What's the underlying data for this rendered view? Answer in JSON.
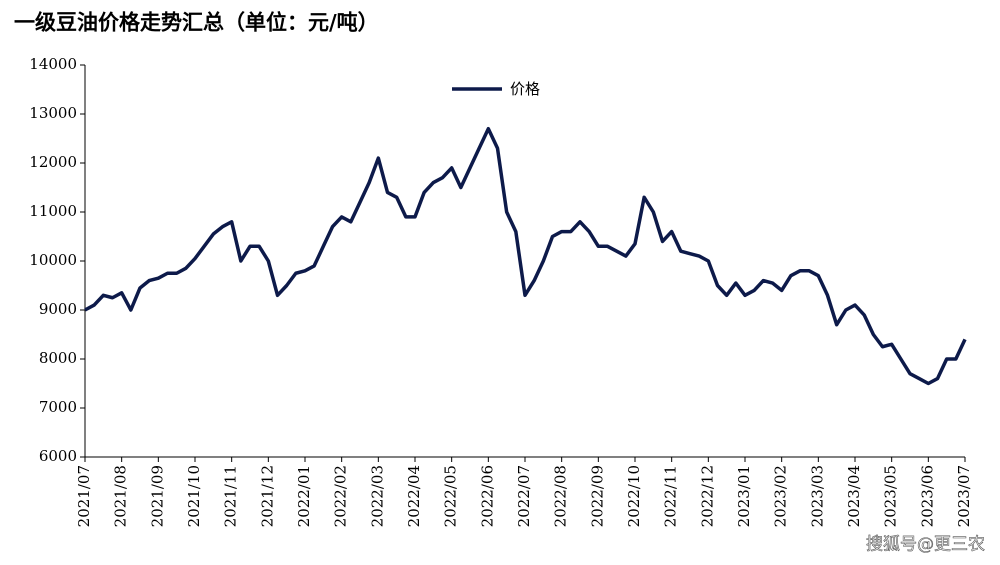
{
  "chart_data": {
    "type": "line",
    "title": "一级豆油价格走势汇总（单位：元/吨）",
    "watermark": "搜狐号@更三农",
    "legend": "top",
    "x": [
      0,
      0.25,
      0.5,
      0.75,
      1,
      1.25,
      1.5,
      1.75,
      2,
      2.25,
      2.5,
      2.75,
      3,
      3.25,
      3.5,
      3.75,
      4,
      4.25,
      4.5,
      4.75,
      5,
      5.25,
      5.5,
      5.75,
      6,
      6.25,
      6.5,
      6.75,
      7,
      7.25,
      7.5,
      7.75,
      8,
      8.25,
      8.5,
      8.75,
      9,
      9.25,
      9.5,
      9.75,
      10,
      10.25,
      10.5,
      10.75,
      11,
      11.25,
      11.5,
      11.75,
      12,
      12.25,
      12.5,
      12.75,
      13,
      13.25,
      13.5,
      13.75,
      14,
      14.25,
      14.5,
      14.75,
      15,
      15.25,
      15.5,
      15.75,
      16,
      16.25,
      16.5,
      16.75,
      17,
      17.25,
      17.5,
      17.75,
      18,
      18.25,
      18.5,
      18.75,
      19,
      19.25,
      19.5,
      19.75,
      20,
      20.25,
      20.5,
      20.75,
      21,
      21.25,
      21.5,
      21.75,
      22,
      22.25,
      22.5,
      22.75,
      23,
      23.25,
      23.5,
      23.75,
      24
    ],
    "series": [
      {
        "name": "价格",
        "color": "#0d1a4a",
        "values": [
          9000,
          9100,
          9300,
          9250,
          9350,
          9000,
          9450,
          9600,
          9650,
          9750,
          9750,
          9850,
          10050,
          10300,
          10550,
          10700,
          10800,
          10000,
          10300,
          10300,
          10000,
          9300,
          9500,
          9750,
          9800,
          9900,
          10300,
          10700,
          10900,
          10800,
          11200,
          11600,
          12100,
          11400,
          11300,
          10900,
          10900,
          11400,
          11600,
          11700,
          11900,
          11500,
          11900,
          12300,
          12700,
          12300,
          11000,
          10600,
          9300,
          9600,
          10000,
          10500,
          10600,
          10600,
          10800,
          10600,
          10300,
          10300,
          10200,
          10100,
          10350,
          11300,
          11000,
          10400,
          10600,
          10200,
          10150,
          10100,
          10000,
          9500,
          9300,
          9550,
          9300,
          9400,
          9600,
          9550,
          9400,
          9700,
          9800,
          9800,
          9700,
          9300,
          8700,
          9000,
          9100,
          8900,
          8500,
          8250,
          8300,
          8000,
          7700,
          7600,
          7500,
          7600,
          8000,
          8000,
          8400
        ]
      }
    ],
    "xlim": [
      0,
      24
    ],
    "xticks": [
      {
        "value": 0,
        "label": "2021/07"
      },
      {
        "value": 1,
        "label": "2021/08"
      },
      {
        "value": 2,
        "label": "2021/09"
      },
      {
        "value": 3,
        "label": "2021/10"
      },
      {
        "value": 4,
        "label": "2021/11"
      },
      {
        "value": 5,
        "label": "2021/12"
      },
      {
        "value": 6,
        "label": "2022/01"
      },
      {
        "value": 7,
        "label": "2022/02"
      },
      {
        "value": 8,
        "label": "2022/03"
      },
      {
        "value": 9,
        "label": "2022/04"
      },
      {
        "value": 10,
        "label": "2022/05"
      },
      {
        "value": 11,
        "label": "2022/06"
      },
      {
        "value": 12,
        "label": "2022/07"
      },
      {
        "value": 13,
        "label": "2022/08"
      },
      {
        "value": 14,
        "label": "2022/09"
      },
      {
        "value": 15,
        "label": "2022/10"
      },
      {
        "value": 16,
        "label": "2022/11"
      },
      {
        "value": 17,
        "label": "2022/12"
      },
      {
        "value": 18,
        "label": "2023/01"
      },
      {
        "value": 19,
        "label": "2023/02"
      },
      {
        "value": 20,
        "label": "2023/03"
      },
      {
        "value": 21,
        "label": "2023/04"
      },
      {
        "value": 22,
        "label": "2023/05"
      },
      {
        "value": 23,
        "label": "2023/06"
      },
      {
        "value": 24,
        "label": "2023/07"
      }
    ],
    "ylim": [
      6000,
      14000
    ],
    "yticks": [
      6000,
      7000,
      8000,
      9000,
      10000,
      11000,
      12000,
      13000,
      14000
    ]
  }
}
